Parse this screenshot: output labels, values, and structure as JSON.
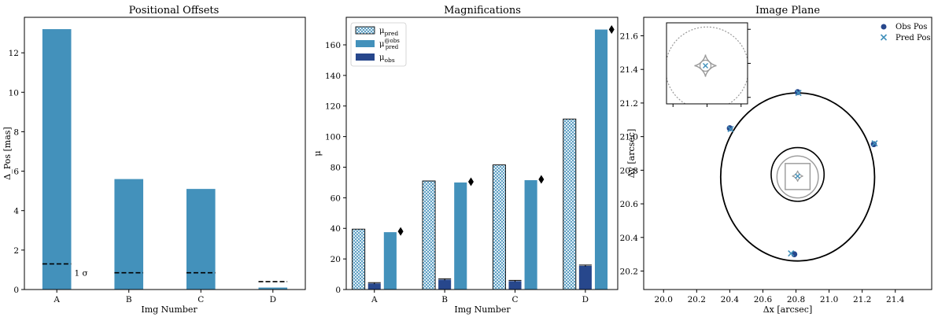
{
  "colors": {
    "bar_main": "#4391bb",
    "bar_obs": "#27478c",
    "pred_hatch": "#4391bb",
    "dashed": "#000000",
    "marker": "#000000",
    "obs_point": "#27478c",
    "pred_point": "#4391bb",
    "critical_curve": "#000000",
    "caustic": "#999999"
  },
  "chart_data": [
    {
      "type": "bar",
      "title": "Positional Offsets",
      "xlabel": "Img Number",
      "ylabel": "Δ_Pos [mas]",
      "categories": [
        "A",
        "B",
        "C",
        "D"
      ],
      "values": [
        13.2,
        5.6,
        5.1,
        0.1
      ],
      "sigma_levels": [
        1.3,
        0.85,
        0.85,
        0.4
      ],
      "sigma_label": "1 σ",
      "ylim": [
        0,
        13.8
      ],
      "yticks": [
        0,
        2,
        4,
        6,
        8,
        10,
        12
      ],
      "grid": false
    },
    {
      "type": "bar",
      "title": "Magnifications",
      "xlabel": "Img Number",
      "ylabel": "μ",
      "categories": [
        "A",
        "B",
        "C",
        "D"
      ],
      "series": [
        {
          "name": "μ_pred",
          "values": [
            39.5,
            71,
            81.5,
            111.5
          ],
          "style": "hatched"
        },
        {
          "name": "μ_pred^@obs",
          "values": [
            37.5,
            70,
            71.5,
            170
          ]
        },
        {
          "name": "μ_obs",
          "values": [
            4,
            6.5,
            5.5,
            15.5
          ],
          "errors": [
            0.5,
            0.5,
            0.5,
            0.5
          ]
        }
      ],
      "markers": [
        38,
        70.5,
        72,
        170
      ],
      "ylim": [
        0,
        178
      ],
      "yticks": [
        0,
        20,
        40,
        60,
        80,
        100,
        120,
        140,
        160
      ],
      "legend_position": "upper-left",
      "grid": false
    },
    {
      "type": "scatter",
      "title": "Image Plane",
      "xlabel": "Δx [arcsec]",
      "ylabel": "Δy [arcsec]",
      "xlim": [
        19.88,
        21.62
      ],
      "ylim": [
        20.09,
        21.71
      ],
      "xticks": [
        20.0,
        20.2,
        20.4,
        20.6,
        20.8,
        21.0,
        21.2,
        21.4
      ],
      "yticks": [
        20.2,
        20.4,
        20.6,
        20.8,
        21.0,
        21.2,
        21.4,
        21.6
      ],
      "xtick_labels": [
        "20.0",
        "20.2",
        "20.4",
        "20.6",
        "20.8",
        "21.0",
        "21.2",
        "21.4"
      ],
      "ytick_labels": [
        "20.2",
        "20.4",
        "20.6",
        "20.8",
        "21.0",
        "21.2",
        "21.4",
        "21.6"
      ],
      "series": [
        {
          "name": "Obs Pos",
          "marker": "circle",
          "x": [
            20.4,
            20.81,
            21.27,
            20.79
          ],
          "y": [
            21.05,
            21.265,
            20.955,
            20.3
          ]
        },
        {
          "name": "Pred Pos",
          "marker": "x",
          "x": [
            20.405,
            20.815,
            21.275,
            20.77
          ],
          "y": [
            21.045,
            21.26,
            20.96,
            20.305
          ]
        }
      ],
      "source_point": {
        "x": 20.81,
        "y": 20.765
      },
      "critical_curve_outer": {
        "cx": 20.81,
        "cy": 20.76,
        "rx": 0.465,
        "ry": 0.5
      },
      "critical_curve_inner": {
        "cx": 20.81,
        "cy": 20.775,
        "rx": 0.16,
        "ry": 0.16
      },
      "caustic_outer_circle": {
        "cx": 20.81,
        "cy": 20.76,
        "rx": 0.125,
        "ry": 0.125
      },
      "caustic_square": {
        "x0": 20.735,
        "x1": 20.885,
        "y0": 20.685,
        "y1": 20.84
      },
      "legend_position": "upper-right",
      "grid": false
    }
  ]
}
